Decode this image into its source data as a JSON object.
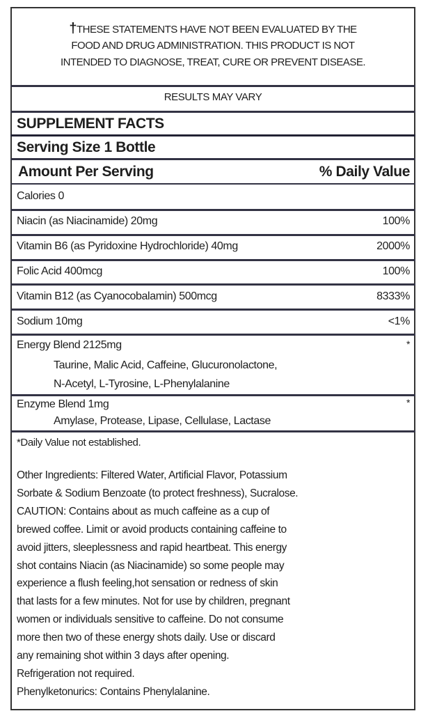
{
  "disclaimer": {
    "dagger": "†",
    "lines": [
      "THESE STATEMENTS HAVE NOT BEEN EVALUATED BY THE",
      "FOOD AND DRUG ADMINISTRATION.  THIS PRODUCT IS NOT",
      "INTENDED TO DIAGNOSE, TREAT, CURE OR PREVENT DISEASE."
    ]
  },
  "results_note": "RESULTS MAY VARY",
  "title": "SUPPLEMENT FACTS",
  "serving_size": "Serving Size 1 Bottle",
  "header": {
    "amount": "Amount Per Serving",
    "daily_value": "% Daily Value"
  },
  "calories": "Calories 0",
  "nutrients": [
    {
      "name": "Niacin (as Niacinamide) 20mg",
      "dv": "100%"
    },
    {
      "name": "Vitamin B6 (as Pyridoxine Hydrochloride) 40mg",
      "dv": "2000%"
    },
    {
      "name": "Folic Acid 400mcg",
      "dv": "100%"
    },
    {
      "name": "Vitamin B12 (as Cyanocobalamin) 500mcg",
      "dv": "8333%"
    },
    {
      "name": "Sodium 10mg",
      "dv": "<1%"
    }
  ],
  "blends": [
    {
      "name": "Energy Blend 2125mg",
      "dv": "*",
      "ingredients": [
        "Taurine, Malic Acid, Caffeine, Glucuronolactone,",
        "N-Acetyl, L-Tyrosine, L-Phenylalanine"
      ]
    },
    {
      "name": "Enzyme Blend 1mg",
      "dv": "*",
      "ingredients": [
        "Amylase, Protease, Lipase, Cellulase, Lactase"
      ]
    }
  ],
  "footnote": "*Daily Value not established.",
  "other_text": [
    "Other Ingredients:  Filtered Water, Artificial Flavor, Potassium",
    "Sorbate & Sodium Benzoate (to protect freshness), Sucralose.",
    "CAUTION: Contains about as much caffeine as a cup of",
    "brewed coffee.  Limit or avoid products containing caffeine to",
    "avoid jitters, sleeplessness and rapid heartbeat.  This energy",
    "shot contains Niacin (as Niacinamide) so some people may",
    "experience a flush feeling,hot sensation or redness of skin",
    "that lasts for a few minutes.  Not for use by children, pregnant",
    "women or individuals sensitive to caffeine.  Do not consume",
    "more then two of these energy shots daily.  Use or discard",
    "any remaining shot within 3 days after opening.",
    "Refrigeration not required.",
    "Phenylketonurics:  Contains Phenylalanine."
  ]
}
